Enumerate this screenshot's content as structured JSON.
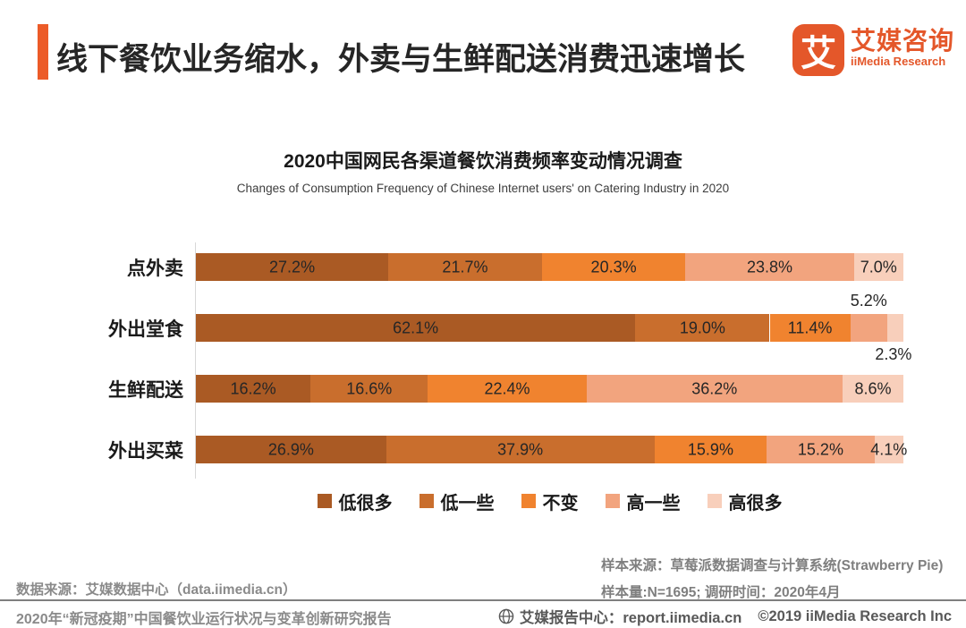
{
  "header": {
    "title": "线下餐饮业务缩水，外卖与生鲜配送消费迅速增长",
    "logo": {
      "glyph": "艾",
      "name_cn": "艾媒咨询",
      "name_en": "iiMedia Research"
    },
    "accent_color": "#EC5B28"
  },
  "chart_data": {
    "type": "bar",
    "orientation": "horizontal-stacked",
    "title": "2020中国网民各渠道餐饮消费频率变动情况调查",
    "subtitle": "Changes of Consumption Frequency of Chinese Internet users' on Catering Industry in 2020",
    "categories": [
      "点外卖",
      "外出堂食",
      "生鲜配送",
      "外出买菜"
    ],
    "series": [
      {
        "name": "低很多",
        "color": "#AA5A24",
        "values": [
          27.2,
          62.1,
          16.2,
          26.9
        ]
      },
      {
        "name": "低一些",
        "color": "#C96E2D",
        "values": [
          21.7,
          19.0,
          16.6,
          37.9
        ]
      },
      {
        "name": "不变",
        "color": "#F0832F",
        "values": [
          20.3,
          11.4,
          22.4,
          15.9
        ]
      },
      {
        "name": "高一些",
        "color": "#F2A47E",
        "values": [
          23.8,
          5.2,
          36.2,
          15.2
        ]
      },
      {
        "name": "高很多",
        "color": "#F8CFBB",
        "values": [
          7.0,
          2.3,
          8.6,
          4.1
        ]
      }
    ],
    "unit": "%",
    "xlim": [
      0,
      100
    ],
    "grid": false,
    "legend_position": "bottom",
    "outside_labels": [
      {
        "row": 1,
        "seg": 3,
        "pos": "above"
      },
      {
        "row": 1,
        "seg": 4,
        "pos": "below"
      }
    ]
  },
  "sources": {
    "data_source": "数据来源：艾媒数据中心（data.iimedia.cn）",
    "sample_source": "样本来源：草莓派数据调查与计算系统(Strawberry Pie)",
    "sample_info": "样本量:N=1695; 调研时间：2020年4月"
  },
  "bottom_bar": {
    "report_title": "2020年“新冠疫期”中国餐饮业运行状况与变革创新研究报告",
    "report_center": "艾媒报告中心：report.iimedia.cn",
    "copyright": "©2019  iiMedia Research Inc"
  }
}
